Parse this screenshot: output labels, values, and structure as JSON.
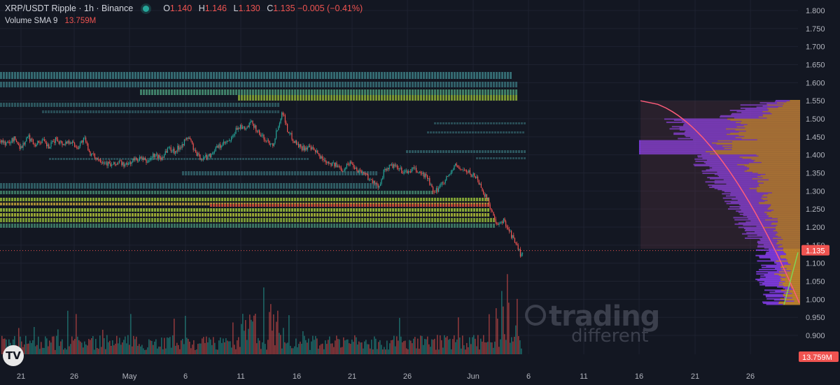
{
  "header": {
    "symbol": "XRP/USDT Ripple · 1h · Binance",
    "o_label": "O",
    "o_value": "1.140",
    "h_label": "H",
    "h_value": "1.146",
    "l_label": "L",
    "l_value": "1.130",
    "c_label": "C",
    "c_value": "1.135",
    "change": "−0.005 (−0.41%)"
  },
  "volume_legend": {
    "label": "Volume SMA 9",
    "value": "13.759M"
  },
  "watermark": {
    "line1": "trading",
    "line2": "different"
  },
  "logo_text": "TV",
  "colors": {
    "background": "#131722",
    "up": "#26a69a",
    "down": "#ef5350",
    "grid": "#1e2230",
    "text": "#b2b5be",
    "profile_orange": "#c98a2e",
    "profile_purple": "#8a3ff0",
    "profile_curve": "#ff5c7a"
  },
  "chart_data": {
    "type": "candlestick",
    "y_axis": {
      "min": 0.85,
      "max": 1.8,
      "ticks": [
        "1.800",
        "1.750",
        "1.700",
        "1.650",
        "1.600",
        "1.550",
        "1.500",
        "1.450",
        "1.400",
        "1.350",
        "1.300",
        "1.250",
        "1.200",
        "1.150",
        "1.100",
        "1.050",
        "1.000",
        "0.950",
        "0.900"
      ]
    },
    "x_axis": {
      "ticks": [
        "21",
        "26",
        "May",
        "6",
        "11",
        "16",
        "21",
        "26",
        "Jun",
        "6",
        "11",
        "16",
        "21",
        "26"
      ]
    },
    "current_price_label": "1.135",
    "volume_label": "13.759M",
    "price_path": [
      [
        0,
        1.44
      ],
      [
        10,
        1.43
      ],
      [
        20,
        1.445
      ],
      [
        30,
        1.42
      ],
      [
        40,
        1.45
      ],
      [
        50,
        1.43
      ],
      [
        60,
        1.44
      ],
      [
        70,
        1.42
      ],
      [
        80,
        1.445
      ],
      [
        90,
        1.43
      ],
      [
        100,
        1.44
      ],
      [
        110,
        1.42
      ],
      [
        120,
        1.445
      ],
      [
        130,
        1.4
      ],
      [
        140,
        1.39
      ],
      [
        150,
        1.38
      ],
      [
        160,
        1.37
      ],
      [
        170,
        1.38
      ],
      [
        180,
        1.37
      ],
      [
        190,
        1.385
      ],
      [
        200,
        1.39
      ],
      [
        210,
        1.38
      ],
      [
        220,
        1.4
      ],
      [
        230,
        1.39
      ],
      [
        240,
        1.42
      ],
      [
        250,
        1.41
      ],
      [
        260,
        1.43
      ],
      [
        270,
        1.45
      ],
      [
        280,
        1.4
      ],
      [
        290,
        1.39
      ],
      [
        300,
        1.4
      ],
      [
        310,
        1.42
      ],
      [
        320,
        1.43
      ],
      [
        330,
        1.44
      ],
      [
        340,
        1.48
      ],
      [
        350,
        1.47
      ],
      [
        360,
        1.49
      ],
      [
        370,
        1.46
      ],
      [
        380,
        1.44
      ],
      [
        390,
        1.43
      ],
      [
        400,
        1.5
      ],
      [
        405,
        1.52
      ],
      [
        410,
        1.47
      ],
      [
        420,
        1.44
      ],
      [
        430,
        1.42
      ],
      [
        440,
        1.42
      ],
      [
        450,
        1.41
      ],
      [
        460,
        1.39
      ],
      [
        470,
        1.38
      ],
      [
        480,
        1.37
      ],
      [
        490,
        1.36
      ],
      [
        500,
        1.38
      ],
      [
        510,
        1.36
      ],
      [
        520,
        1.35
      ],
      [
        530,
        1.33
      ],
      [
        540,
        1.31
      ],
      [
        550,
        1.36
      ],
      [
        560,
        1.37
      ],
      [
        570,
        1.36
      ],
      [
        580,
        1.35
      ],
      [
        590,
        1.36
      ],
      [
        600,
        1.35
      ],
      [
        610,
        1.34
      ],
      [
        620,
        1.29
      ],
      [
        630,
        1.32
      ],
      [
        640,
        1.34
      ],
      [
        650,
        1.37
      ],
      [
        660,
        1.36
      ],
      [
        670,
        1.35
      ],
      [
        680,
        1.34
      ],
      [
        690,
        1.3
      ],
      [
        700,
        1.26
      ],
      [
        710,
        1.2
      ],
      [
        720,
        1.22
      ],
      [
        730,
        1.18
      ],
      [
        740,
        1.14
      ],
      [
        745,
        1.12
      ],
      [
        748,
        1.135
      ]
    ],
    "volume_profile_poc": 1.42,
    "volume_profile_min": 0.985,
    "volume_profile_max": 1.55
  }
}
